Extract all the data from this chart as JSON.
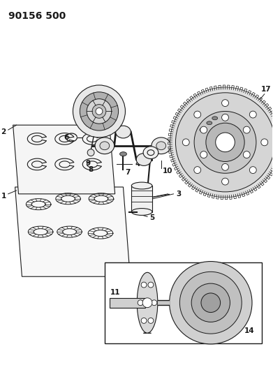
{
  "title": "90156 500",
  "bg_color": "#ffffff",
  "fig_width": 3.91,
  "fig_height": 5.33,
  "dpi": 100,
  "title_fontsize": 10,
  "title_fontweight": "bold"
}
